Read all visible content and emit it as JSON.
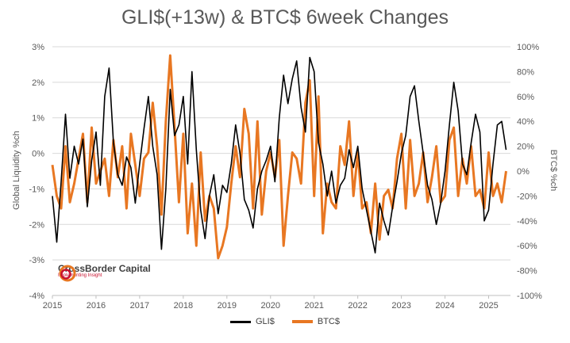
{
  "chart_data": {
    "type": "line",
    "title": "GLI$(+13w) & BTC$ 6week Changes",
    "ylabel_left": "Global Liquidity %ch",
    "ylabel_right": "BTC$ %ch",
    "ylim_left": [
      -4,
      3
    ],
    "ylim_right": [
      -100,
      100
    ],
    "yticks_left": [
      "3%",
      "2%",
      "1%",
      "0%",
      "-1%",
      "-2%",
      "-3%",
      "-4%"
    ],
    "yticks_right": [
      "100%",
      "80%",
      "60%",
      "40%",
      "20%",
      "0%",
      "-20%",
      "-40%",
      "-60%",
      "-80%",
      "-100%"
    ],
    "xlim": [
      2015,
      2025.5
    ],
    "xticks": [
      "2015",
      "2016",
      "2017",
      "2018",
      "2019",
      "2020",
      "2021",
      "2022",
      "2023",
      "2024",
      "2025"
    ],
    "grid": true,
    "legend_position": "bottom",
    "series": [
      {
        "name": "GLI$",
        "axis": "left",
        "color": "#000000",
        "x": [
          2015.0,
          2015.1,
          2015.2,
          2015.3,
          2015.4,
          2015.5,
          2015.6,
          2015.7,
          2015.8,
          2015.9,
          2016.0,
          2016.1,
          2016.2,
          2016.3,
          2016.4,
          2016.5,
          2016.6,
          2016.7,
          2016.8,
          2016.9,
          2017.0,
          2017.1,
          2017.2,
          2017.3,
          2017.4,
          2017.5,
          2017.6,
          2017.7,
          2017.8,
          2017.9,
          2018.0,
          2018.1,
          2018.2,
          2018.3,
          2018.4,
          2018.5,
          2018.6,
          2018.7,
          2018.8,
          2018.9,
          2019.0,
          2019.1,
          2019.2,
          2019.3,
          2019.4,
          2019.5,
          2019.6,
          2019.7,
          2019.8,
          2019.9,
          2020.0,
          2020.1,
          2020.2,
          2020.3,
          2020.4,
          2020.5,
          2020.6,
          2020.7,
          2020.8,
          2020.9,
          2021.0,
          2021.1,
          2021.2,
          2021.3,
          2021.4,
          2021.5,
          2021.6,
          2021.7,
          2021.8,
          2021.9,
          2022.0,
          2022.1,
          2022.2,
          2022.3,
          2022.4,
          2022.5,
          2022.6,
          2022.7,
          2022.8,
          2022.9,
          2023.0,
          2023.1,
          2023.2,
          2023.3,
          2023.4,
          2023.5,
          2023.6,
          2023.7,
          2023.8,
          2023.9,
          2024.0,
          2024.1,
          2024.2,
          2024.3,
          2024.4,
          2024.5,
          2024.6,
          2024.7,
          2024.8,
          2024.9,
          2025.0,
          2025.1,
          2025.2,
          2025.3,
          2025.4
        ],
        "values": [
          -1.2,
          -2.5,
          -0.8,
          1.1,
          -0.7,
          0.2,
          -0.3,
          0.4,
          -1.5,
          -0.2,
          0.6,
          -0.9,
          1.6,
          2.4,
          0.3,
          -0.6,
          -0.9,
          -0.1,
          -0.4,
          -1.4,
          -0.3,
          0.7,
          1.6,
          0.2,
          -0.6,
          -2.7,
          -1.0,
          1.8,
          0.5,
          0.8,
          1.6,
          -0.3,
          2.3,
          0.1,
          -1.6,
          -2.4,
          -1.2,
          -0.6,
          -1.7,
          -0.9,
          -1.1,
          -0.3,
          0.8,
          0.0,
          -1.3,
          -1.6,
          -2.1,
          -1.0,
          -0.5,
          -0.2,
          0.2,
          -0.8,
          1.0,
          2.2,
          1.4,
          2.1,
          2.6,
          1.3,
          0.6,
          2.7,
          2.3,
          0.3,
          -0.3,
          -1.2,
          -0.5,
          -1.4,
          -0.9,
          -0.7,
          0.1,
          -0.4,
          0.2,
          -1.0,
          -1.6,
          -2.2,
          -2.8,
          -1.4,
          -1.9,
          -2.3,
          -1.5,
          -0.8,
          0.0,
          0.5,
          1.6,
          1.9,
          0.9,
          0.0,
          -0.9,
          -1.3,
          -2.0,
          -1.4,
          -0.5,
          0.8,
          2.0,
          1.2,
          -0.3,
          -0.6,
          0.3,
          1.1,
          0.6,
          -1.9,
          -1.6,
          -0.3,
          0.8,
          0.9,
          0.1
        ]
      },
      {
        "name": "BTC$",
        "axis": "right",
        "color": "#e87722",
        "x": [
          2015.0,
          2015.1,
          2015.2,
          2015.3,
          2015.4,
          2015.5,
          2015.6,
          2015.7,
          2015.8,
          2015.9,
          2016.0,
          2016.1,
          2016.2,
          2016.3,
          2016.4,
          2016.5,
          2016.6,
          2016.7,
          2016.8,
          2016.9,
          2017.0,
          2017.1,
          2017.2,
          2017.3,
          2017.4,
          2017.5,
          2017.6,
          2017.7,
          2017.8,
          2017.9,
          2018.0,
          2018.1,
          2018.2,
          2018.3,
          2018.4,
          2018.5,
          2018.6,
          2018.7,
          2018.8,
          2018.9,
          2019.0,
          2019.1,
          2019.2,
          2019.3,
          2019.4,
          2019.5,
          2019.6,
          2019.7,
          2019.8,
          2019.9,
          2020.0,
          2020.1,
          2020.2,
          2020.3,
          2020.4,
          2020.5,
          2020.6,
          2020.7,
          2020.8,
          2020.9,
          2021.0,
          2021.1,
          2021.2,
          2021.3,
          2021.4,
          2021.5,
          2021.6,
          2021.7,
          2021.8,
          2021.9,
          2022.0,
          2022.1,
          2022.2,
          2022.3,
          2022.4,
          2022.5,
          2022.6,
          2022.7,
          2022.8,
          2022.9,
          2023.0,
          2023.1,
          2023.2,
          2023.3,
          2023.4,
          2023.5,
          2023.6,
          2023.7,
          2023.8,
          2023.9,
          2024.0,
          2024.1,
          2024.2,
          2024.3,
          2024.4,
          2024.5,
          2024.6,
          2024.7,
          2024.8,
          2024.9,
          2025.0,
          2025.1,
          2025.2,
          2025.3,
          2025.4
        ],
        "values": [
          5,
          -20,
          -30,
          20,
          -25,
          -10,
          10,
          30,
          -25,
          35,
          -10,
          0,
          10,
          -20,
          25,
          -5,
          20,
          -30,
          30,
          5,
          -20,
          10,
          15,
          55,
          20,
          -35,
          40,
          93,
          35,
          -25,
          30,
          -50,
          -10,
          -60,
          15,
          -40,
          -20,
          -30,
          -70,
          -60,
          -45,
          -10,
          20,
          -5,
          50,
          30,
          -30,
          40,
          -35,
          0,
          15,
          -5,
          25,
          -60,
          -20,
          15,
          10,
          -10,
          55,
          73,
          -20,
          60,
          -50,
          -10,
          -25,
          -30,
          20,
          5,
          40,
          -20,
          15,
          -30,
          -25,
          -50,
          -10,
          -55,
          -20,
          -15,
          -30,
          10,
          30,
          -30,
          25,
          -20,
          -10,
          15,
          -25,
          -5,
          20,
          -25,
          -20,
          25,
          35,
          -20,
          10,
          -10,
          20,
          -20,
          -15,
          -30,
          15,
          -20,
          -10,
          -25,
          0
        ]
      }
    ]
  },
  "logo": {
    "brand": "CrossBorder Capital",
    "tagline": "Implementing Insight"
  }
}
